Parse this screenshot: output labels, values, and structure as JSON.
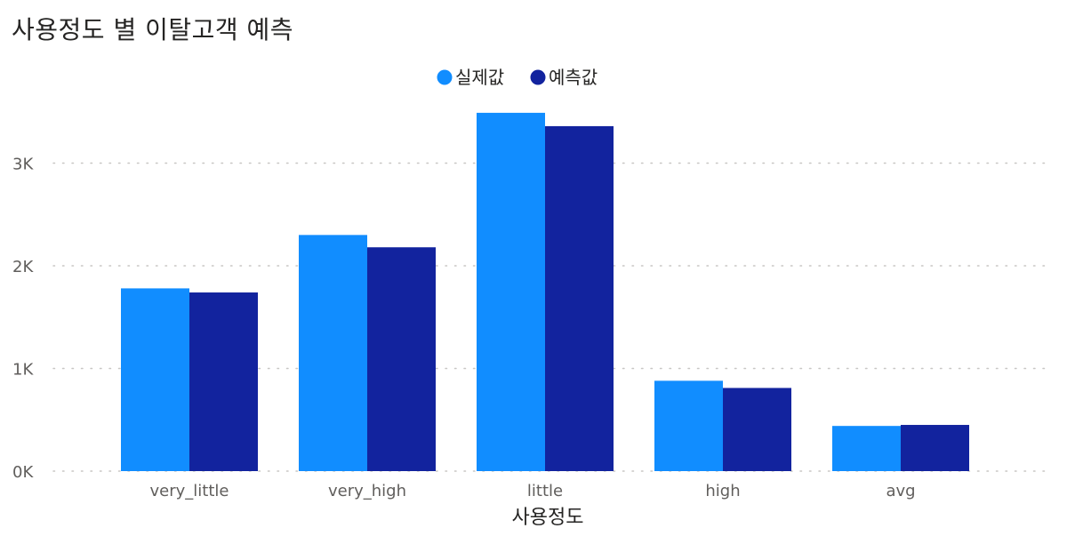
{
  "chart_data": {
    "type": "bar",
    "title": "사용정도 별 이탈고객 예측",
    "xlabel": "사용정도",
    "ylabel": "",
    "categories": [
      "very_little",
      "very_high",
      "little",
      "high",
      "avg"
    ],
    "series": [
      {
        "name": "실제값",
        "values": [
          1780,
          2300,
          3490,
          880,
          440
        ],
        "color": "#118DFF"
      },
      {
        "name": "예측값",
        "values": [
          1740,
          2180,
          3360,
          810,
          450
        ],
        "color": "#12239E"
      }
    ],
    "ylim": [
      0,
      3600
    ],
    "yticks": [
      {
        "value": 0,
        "label": "0K"
      },
      {
        "value": 1000,
        "label": "1K"
      },
      {
        "value": 2000,
        "label": "2K"
      },
      {
        "value": 3000,
        "label": "3K"
      }
    ],
    "legend_position": "top-center",
    "grid": true
  }
}
